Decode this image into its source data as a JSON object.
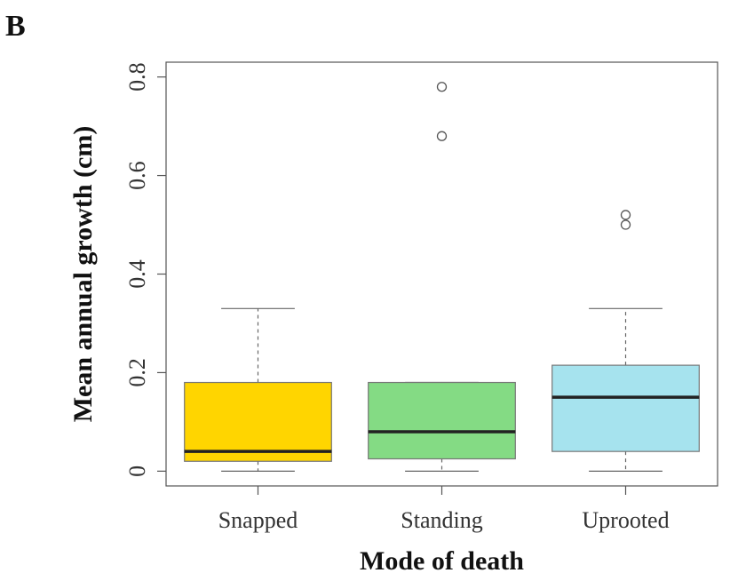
{
  "chart_data": {
    "type": "box",
    "panel_label": "B",
    "xlabel": "Mode of death",
    "ylabel": "Mean annual growth (cm)",
    "ylim": [
      -0.03,
      0.83
    ],
    "yticks": [
      0,
      0.2,
      0.4,
      0.6,
      0.8
    ],
    "ytick_labels": [
      "0",
      "0.2",
      "0.4",
      "0.6",
      "0.8"
    ],
    "grid": false,
    "categories": [
      "Snapped",
      "Standing",
      "Uprooted"
    ],
    "boxes": [
      {
        "category": "Snapped",
        "min": 0.0,
        "q1": 0.02,
        "median": 0.04,
        "q3": 0.18,
        "max": 0.33,
        "outliers": [],
        "color": "#FFD500"
      },
      {
        "category": "Standing",
        "min": 0.0,
        "q1": 0.025,
        "median": 0.08,
        "q3": 0.18,
        "max": 0.18,
        "outliers": [
          0.68,
          0.78
        ],
        "color": "#84DB84"
      },
      {
        "category": "Uprooted",
        "min": 0.0,
        "q1": 0.04,
        "median": 0.15,
        "q3": 0.215,
        "max": 0.33,
        "outliers": [
          0.5,
          0.52
        ],
        "color": "#A6E3EE"
      }
    ]
  }
}
